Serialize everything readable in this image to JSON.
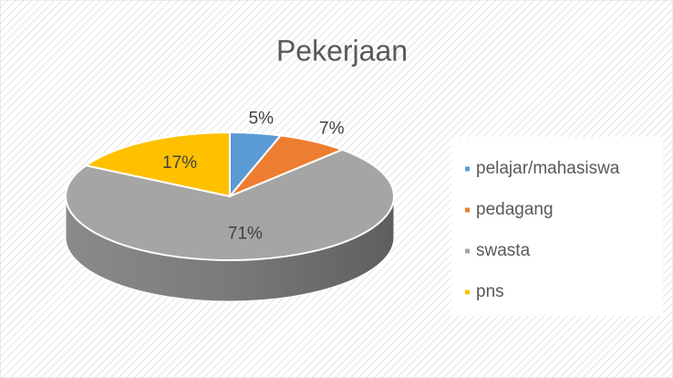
{
  "chart_data": {
    "type": "pie3d",
    "title": "Pekerjaan",
    "categories": [
      "pelajar/mahasiswa",
      "pedagang",
      "swasta",
      "pns"
    ],
    "values": [
      5,
      7,
      71,
      17
    ],
    "value_labels": [
      "5%",
      "7%",
      "71%",
      "17%"
    ],
    "colors": [
      "#5b9bd5",
      "#ed7d31",
      "#a5a5a5",
      "#ffc000"
    ],
    "legend": "right"
  }
}
